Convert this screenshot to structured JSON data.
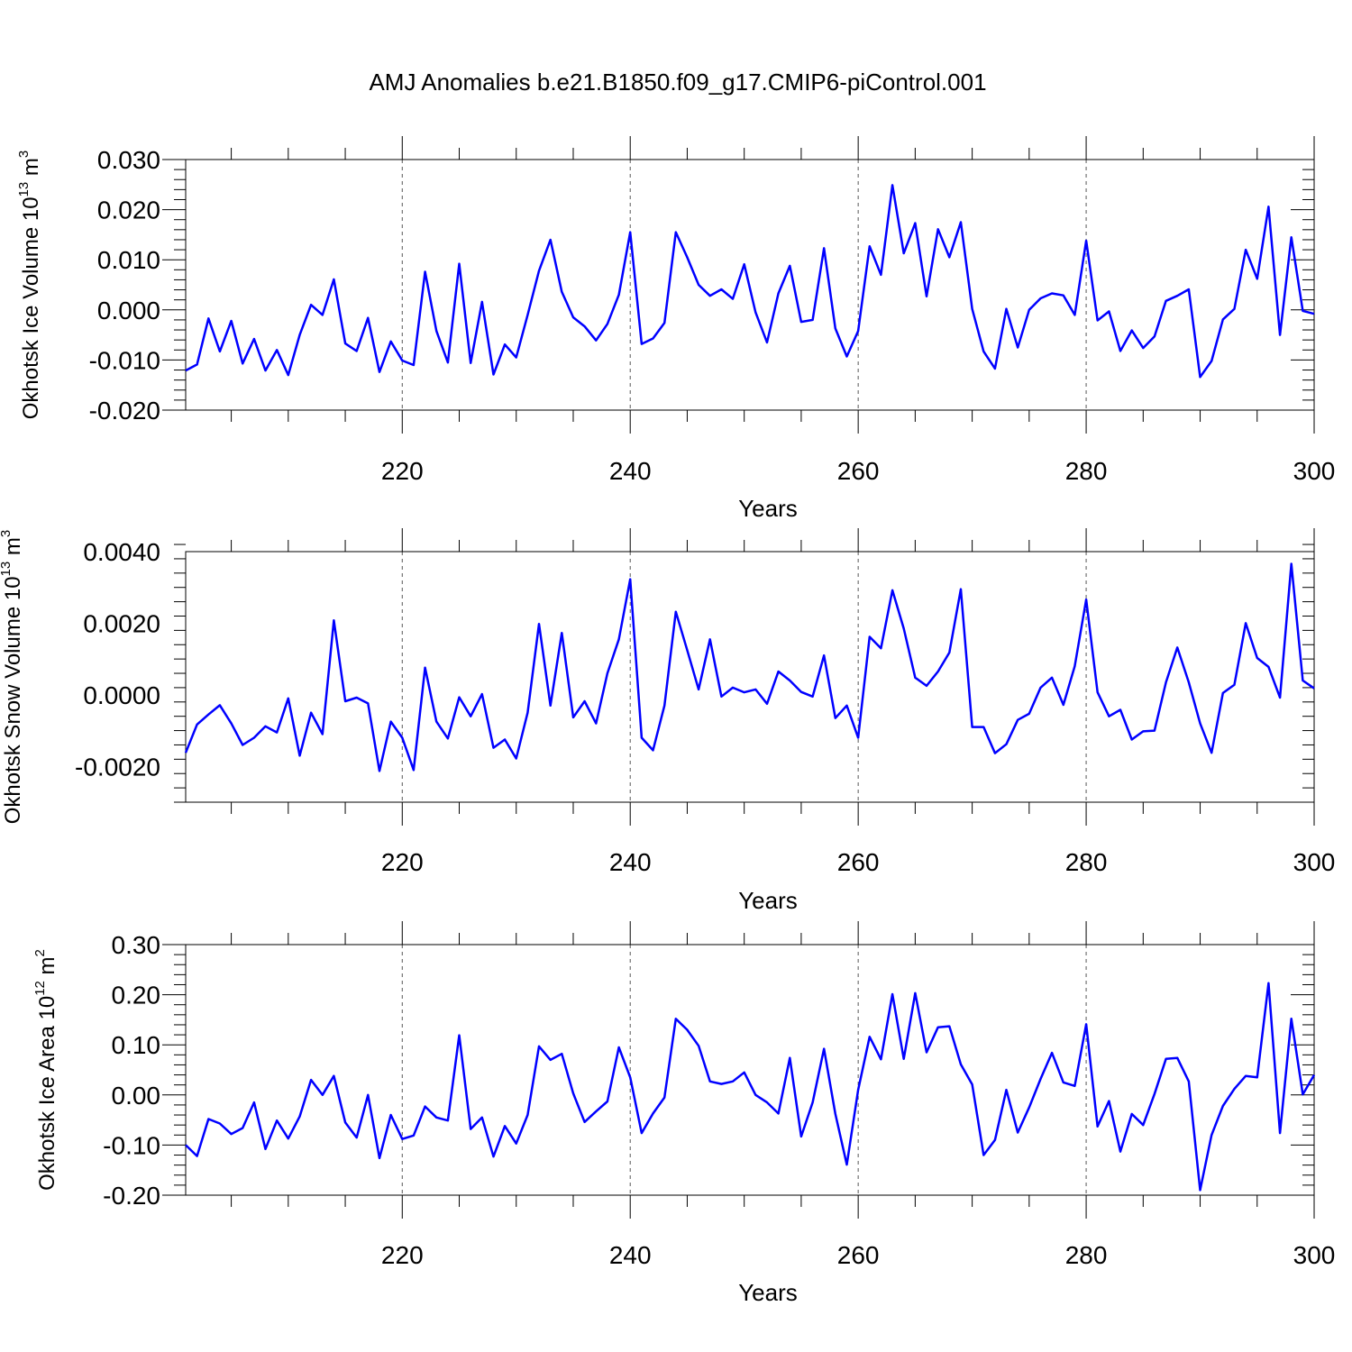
{
  "title": "AMJ Anomalies b.e21.B1850.f09_g17.CMIP6-piControl.001",
  "colors": {
    "series": "#0000ff",
    "axis": "#000000",
    "grid": "#555555"
  },
  "chart_data": [
    {
      "type": "line",
      "ylabel_main": "Okhotsk Ice Volume 10",
      "ylabel_exp": "13",
      "ylabel_unit": "m",
      "ylabel_unit_exp": "3",
      "xlabel": "Years",
      "xlim": [
        201,
        300
      ],
      "ylim": [
        -0.02,
        0.03
      ],
      "xticks": [
        220,
        240,
        260,
        280,
        300
      ],
      "xtick_labels": [
        "220",
        "240",
        "260",
        "280",
        "300"
      ],
      "yticks": [
        -0.02,
        -0.01,
        0.0,
        0.01,
        0.02,
        0.03
      ],
      "ytick_labels": [
        "-0.020",
        "-0.010",
        "0.000",
        "0.010",
        "0.020",
        "0.030"
      ],
      "grid_x": [
        220,
        240,
        260,
        280
      ],
      "x_start": 201,
      "values": [
        -0.0121,
        -0.0109,
        -0.0017,
        -0.0083,
        -0.0022,
        -0.0107,
        -0.0058,
        -0.0121,
        -0.008,
        -0.013,
        -0.005,
        0.001,
        -0.001,
        0.0061,
        -0.0067,
        -0.0082,
        -0.0016,
        -0.0124,
        -0.0063,
        -0.0101,
        -0.011,
        0.0076,
        -0.0042,
        -0.0105,
        0.0092,
        -0.0106,
        0.0016,
        -0.0129,
        -0.0069,
        -0.0095,
        -0.001,
        0.0078,
        0.014,
        0.0036,
        -0.0015,
        -0.0033,
        -0.0061,
        -0.0028,
        0.003,
        0.0155,
        -0.0068,
        -0.0057,
        -0.0026,
        0.0155,
        0.0105,
        0.005,
        0.0028,
        0.0041,
        0.0022,
        0.0091,
        -0.0005,
        -0.0065,
        0.0033,
        0.0088,
        -0.0024,
        -0.002,
        0.0123,
        -0.0037,
        -0.0093,
        -0.0042,
        0.0127,
        0.007,
        0.0249,
        0.0113,
        0.0173,
        0.0027,
        0.0161,
        0.0105,
        0.0175,
        0.0002,
        -0.0083,
        -0.0117,
        0.0002,
        -0.0075,
        0.0,
        0.0023,
        0.0033,
        0.0029,
        -0.001,
        0.0138,
        -0.0021,
        -0.0003,
        -0.0082,
        -0.0041,
        -0.0076,
        -0.0053,
        0.0018,
        0.0028,
        0.0041,
        -0.0134,
        -0.0102,
        -0.0019,
        0.0002,
        0.012,
        0.0062,
        0.0206,
        -0.005,
        0.0145,
        -0.0002,
        -0.0008
      ]
    },
    {
      "type": "line",
      "ylabel_main": "Okhotsk Snow Volume 10",
      "ylabel_exp": "13",
      "ylabel_unit": "m",
      "ylabel_unit_exp": "3",
      "xlabel": "Years",
      "xlim": [
        201,
        300
      ],
      "ylim": [
        -0.003,
        0.004
      ],
      "xticks": [
        220,
        240,
        260,
        280,
        300
      ],
      "xtick_labels": [
        "220",
        "240",
        "260",
        "280",
        "300"
      ],
      "yticks": [
        -0.002,
        0.0,
        0.002,
        0.004
      ],
      "ytick_labels": [
        "-0.0020",
        "0.0000",
        "0.0020",
        "0.0040"
      ],
      "grid_x": [
        220,
        240,
        260,
        280
      ],
      "x_start": 201,
      "values": [
        -0.00162,
        -0.00083,
        -0.00055,
        -0.00029,
        -0.0008,
        -0.0014,
        -0.0012,
        -0.00088,
        -0.00105,
        -0.0001,
        -0.0017,
        -0.0005,
        -0.0011,
        0.00208,
        -0.00018,
        -8e-05,
        -0.00024,
        -0.00213,
        -0.00075,
        -0.0012,
        -0.0021,
        0.00076,
        -0.00075,
        -0.00122,
        -7e-05,
        -0.0006,
        2e-05,
        -0.00148,
        -0.00125,
        -0.00178,
        -0.0005,
        0.00198,
        -0.0003,
        0.00173,
        -0.00063,
        -0.00018,
        -0.0008,
        0.0006,
        0.00155,
        0.00323,
        -0.0012,
        -0.00155,
        -0.0003,
        0.00232,
        0.00125,
        0.00015,
        0.00155,
        -5e-05,
        0.0002,
        7e-05,
        0.00015,
        -0.00025,
        0.00065,
        0.0004,
        8e-05,
        -5e-05,
        0.0011,
        -0.00065,
        -0.0003,
        -0.0012,
        0.00162,
        0.0013,
        0.00292,
        0.00185,
        0.00048,
        0.00025,
        0.00065,
        0.00118,
        0.00295,
        -0.0009,
        -0.0009,
        -0.00163,
        -0.00138,
        -0.0007,
        -0.00053,
        0.0002,
        0.00048,
        -0.00028,
        0.0008,
        0.00266,
        7e-05,
        -0.0006,
        -0.00042,
        -0.00125,
        -0.00102,
        -0.001,
        0.00035,
        0.00132,
        0.00035,
        -0.0008,
        -0.00162,
        5e-05,
        0.00028,
        0.002,
        0.00103,
        0.00078,
        -8e-05,
        0.00366,
        0.0004,
        0.00018
      ]
    },
    {
      "type": "line",
      "ylabel_main": "Okhotsk Ice Area 10",
      "ylabel_exp": "12",
      "ylabel_unit": "m",
      "ylabel_unit_exp": "2",
      "xlabel": "Years",
      "xlim": [
        201,
        300
      ],
      "ylim": [
        -0.2,
        0.3
      ],
      "xticks": [
        220,
        240,
        260,
        280,
        300
      ],
      "xtick_labels": [
        "220",
        "240",
        "260",
        "280",
        "300"
      ],
      "yticks": [
        -0.2,
        -0.1,
        0.0,
        0.1,
        0.2,
        0.3
      ],
      "ytick_labels": [
        "-0.20",
        "-0.10",
        "0.00",
        "0.10",
        "0.20",
        "0.30"
      ],
      "grid_x": [
        220,
        240,
        260,
        280
      ],
      "x_start": 201,
      "values": [
        -0.1,
        -0.122,
        -0.048,
        -0.057,
        -0.078,
        -0.066,
        -0.015,
        -0.108,
        -0.051,
        -0.087,
        -0.043,
        0.03,
        0.0,
        0.038,
        -0.055,
        -0.085,
        0.0,
        -0.126,
        -0.04,
        -0.088,
        -0.081,
        -0.023,
        -0.045,
        -0.051,
        0.119,
        -0.068,
        -0.045,
        -0.123,
        -0.062,
        -0.097,
        -0.04,
        0.097,
        0.07,
        0.082,
        0.003,
        -0.054,
        -0.033,
        -0.013,
        0.095,
        0.035,
        -0.076,
        -0.037,
        -0.005,
        0.152,
        0.13,
        0.098,
        0.027,
        0.022,
        0.027,
        0.045,
        0.0,
        -0.015,
        -0.037,
        0.074,
        -0.083,
        -0.015,
        0.092,
        -0.038,
        -0.139,
        0.01,
        0.116,
        0.071,
        0.201,
        0.072,
        0.203,
        0.085,
        0.135,
        0.137,
        0.061,
        0.021,
        -0.12,
        -0.09,
        0.01,
        -0.075,
        -0.025,
        0.032,
        0.084,
        0.025,
        0.018,
        0.141,
        -0.063,
        -0.012,
        -0.113,
        -0.038,
        -0.06,
        0.002,
        0.072,
        0.074,
        0.027,
        -0.19,
        -0.08,
        -0.022,
        0.012,
        0.038,
        0.035,
        0.223,
        -0.076,
        0.152,
        0.001,
        0.04
      ]
    }
  ]
}
